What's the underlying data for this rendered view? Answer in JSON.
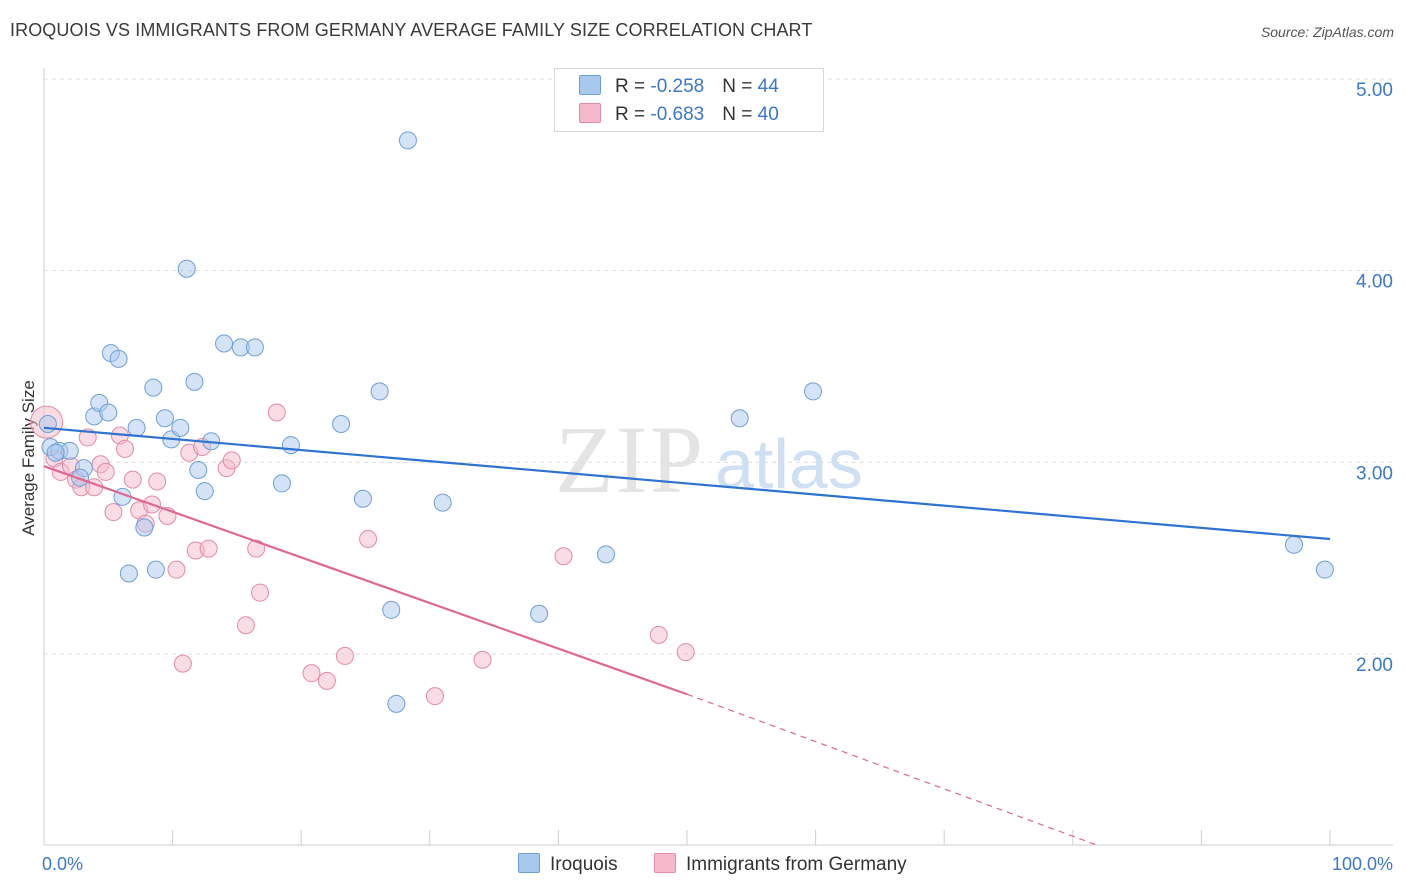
{
  "title": "IROQUOIS VS IMMIGRANTS FROM GERMANY AVERAGE FAMILY SIZE CORRELATION CHART",
  "source": "Source: ZipAtlas.com",
  "watermark": {
    "zip": "ZIP",
    "atlas": "atlas"
  },
  "legend": {
    "rows": [
      {
        "r_label": "R = ",
        "r_value": "-0.258",
        "n_label": "N = ",
        "n_value": "44"
      },
      {
        "r_label": "R = ",
        "r_value": "-0.683",
        "n_label": "N = ",
        "n_value": "40"
      }
    ]
  },
  "colors": {
    "iroquois_fill": "#a9c8ee",
    "iroquois_stroke": "#6f9fd8",
    "iroquois_line": "#2f73d0",
    "germany_fill": "#f6b9cc",
    "germany_stroke": "#e58aa8",
    "germany_line": "#e06890",
    "grid": "#dedede",
    "tick_text": "#3b78c9"
  },
  "chart_data": {
    "type": "scatter",
    "title": "IROQUOIS VS IMMIGRANTS FROM GERMANY AVERAGE FAMILY SIZE CORRELATION CHART",
    "xlabel": "",
    "ylabel": "Average Family Size",
    "xlim": [
      0,
      100
    ],
    "ylim": [
      1.0,
      5.2
    ],
    "x_tick_labels": [
      "0.0%",
      "100.0%"
    ],
    "y_ticks": [
      2.0,
      3.0,
      4.0,
      5.0
    ],
    "y_tick_labels": [
      "2.00",
      "3.00",
      "4.00",
      "5.00"
    ],
    "grid": "horizontal dashed",
    "legend_position": "top-center",
    "series": [
      {
        "name": "Iroquois",
        "trend": {
          "x": [
            0,
            100
          ],
          "y": [
            3.18,
            2.6
          ]
        },
        "points": [
          [
            0.3,
            3.2
          ],
          [
            0.5,
            3.08
          ],
          [
            1.2,
            3.06
          ],
          [
            2.0,
            3.06
          ],
          [
            3.1,
            2.97
          ],
          [
            2.8,
            2.92
          ],
          [
            3.9,
            3.24
          ],
          [
            4.3,
            3.31
          ],
          [
            5.0,
            3.26
          ],
          [
            5.2,
            3.57
          ],
          [
            5.8,
            3.54
          ],
          [
            6.1,
            2.82
          ],
          [
            6.6,
            2.42
          ],
          [
            7.2,
            3.18
          ],
          [
            7.8,
            2.66
          ],
          [
            8.5,
            3.39
          ],
          [
            8.7,
            2.44
          ],
          [
            9.4,
            3.23
          ],
          [
            9.9,
            3.12
          ],
          [
            10.6,
            3.18
          ],
          [
            11.1,
            4.01
          ],
          [
            11.7,
            3.42
          ],
          [
            12.0,
            2.96
          ],
          [
            12.5,
            2.85
          ],
          [
            13.0,
            3.11
          ],
          [
            14.0,
            3.62
          ],
          [
            15.3,
            3.6
          ],
          [
            16.4,
            3.6
          ],
          [
            18.5,
            2.89
          ],
          [
            19.2,
            3.09
          ],
          [
            23.1,
            3.2
          ],
          [
            24.8,
            2.81
          ],
          [
            26.1,
            3.37
          ],
          [
            27.0,
            2.23
          ],
          [
            27.4,
            1.74
          ],
          [
            28.3,
            4.68
          ],
          [
            31.0,
            2.79
          ],
          [
            38.5,
            2.21
          ],
          [
            43.7,
            2.52
          ],
          [
            54.1,
            3.23
          ],
          [
            59.8,
            3.37
          ],
          [
            97.2,
            2.57
          ],
          [
            99.6,
            2.44
          ],
          [
            0.9,
            3.05
          ]
        ]
      },
      {
        "name": "Immigrants from Germany",
        "trend": {
          "x": [
            0,
            50
          ],
          "y": [
            2.98,
            1.79
          ],
          "dashed_extension": {
            "x": [
              50,
              82
            ],
            "y": [
              1.79,
              1.0
            ]
          }
        },
        "points": [
          [
            0.2,
            3.21
          ],
          [
            0.8,
            3.02
          ],
          [
            1.3,
            2.95
          ],
          [
            2.1,
            2.98
          ],
          [
            2.5,
            2.91
          ],
          [
            2.9,
            2.87
          ],
          [
            3.4,
            3.13
          ],
          [
            3.9,
            2.87
          ],
          [
            4.4,
            2.99
          ],
          [
            4.8,
            2.95
          ],
          [
            5.4,
            2.74
          ],
          [
            5.9,
            3.14
          ],
          [
            6.3,
            3.07
          ],
          [
            6.9,
            2.91
          ],
          [
            7.4,
            2.75
          ],
          [
            7.9,
            2.68
          ],
          [
            8.4,
            2.78
          ],
          [
            8.8,
            2.9
          ],
          [
            9.6,
            2.72
          ],
          [
            10.3,
            2.44
          ],
          [
            10.8,
            1.95
          ],
          [
            11.3,
            3.05
          ],
          [
            11.8,
            2.54
          ],
          [
            12.3,
            3.08
          ],
          [
            12.8,
            2.55
          ],
          [
            14.2,
            2.97
          ],
          [
            14.6,
            3.01
          ],
          [
            15.7,
            2.15
          ],
          [
            16.5,
            2.55
          ],
          [
            16.8,
            2.32
          ],
          [
            18.1,
            3.26
          ],
          [
            20.8,
            1.9
          ],
          [
            22.0,
            1.86
          ],
          [
            23.4,
            1.99
          ],
          [
            25.2,
            2.6
          ],
          [
            30.4,
            1.78
          ],
          [
            34.1,
            1.97
          ],
          [
            40.4,
            2.51
          ],
          [
            47.8,
            2.1
          ],
          [
            49.9,
            2.01
          ]
        ]
      }
    ]
  },
  "bottom_legend": {
    "items": [
      "Iroquois",
      "Immigrants from Germany"
    ]
  }
}
